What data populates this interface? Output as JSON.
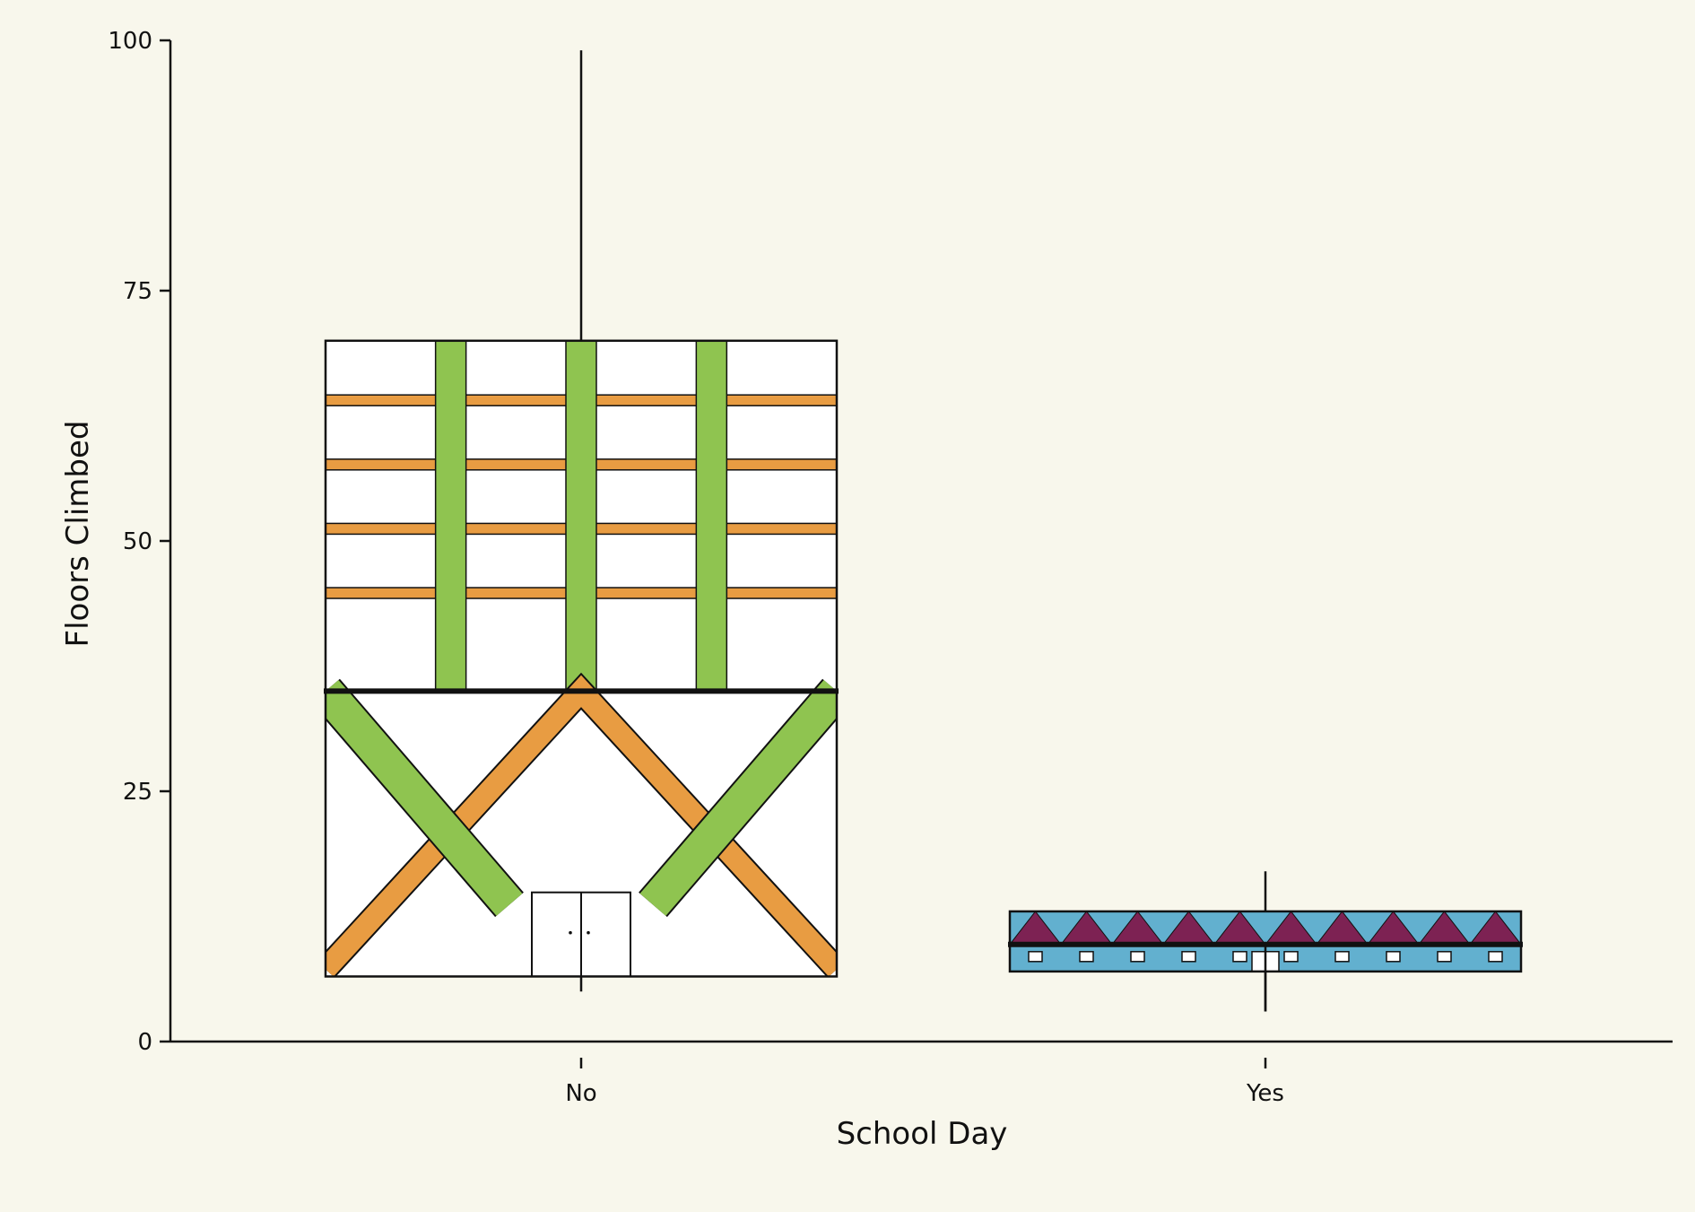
{
  "chart_data": {
    "type": "box",
    "xlabel": "School Day",
    "ylabel": "Floors Climbed",
    "ylim": [
      0,
      100
    ],
    "yticks": [
      0,
      25,
      50,
      75,
      100
    ],
    "categories": [
      "No",
      "Yes"
    ],
    "boxes": [
      {
        "category": "No",
        "whisker_low": 5,
        "q1": 6.5,
        "median": 35,
        "q3": 70,
        "whisker_high": 99
      },
      {
        "category": "Yes",
        "whisker_low": 3,
        "q1": 7,
        "median": 9.7,
        "q3": 13,
        "whisker_high": 17
      }
    ],
    "colors": {
      "background": "#f8f7ec",
      "orange": "#e89c42",
      "green": "#8fc450",
      "purple": "#7d2253",
      "blue": "#62b0cf",
      "line": "#111111",
      "white": "#ffffff"
    }
  }
}
